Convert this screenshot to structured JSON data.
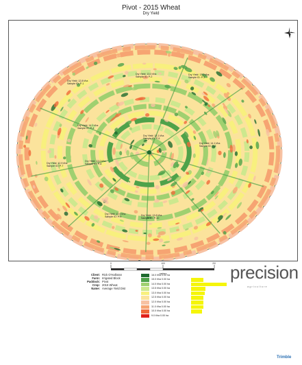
{
  "map": {
    "title": "Pivot - 2015 Wheat",
    "subtitle": "Dry Yield",
    "compass_icon": "north-arrow-icon",
    "colors": {
      "low_1": "#e0201a",
      "low_2": "#f06a3a",
      "low_3": "#f6a472",
      "low_4": "#f7c2a3",
      "mid_1": "#fbe39c",
      "mid_2": "#f8f07e",
      "high_1": "#cde88e",
      "high_2": "#9fd070",
      "high_3": "#4fa24a",
      "high_4": "#1f6a2f",
      "outline": "#555555"
    },
    "samples": [
      {
        "line1": "Dry Yield: 12.8 t/ha",
        "line2": "Sample ID: P-1"
      },
      {
        "line1": "Dry Yield: 13.0 t/ha",
        "line2": "Sample ID: P-2"
      },
      {
        "line1": "Dry Yield: 13.0 t/ha",
        "line2": "Sample ID: P-3"
      },
      {
        "line1": "Dry Yield: 14.1 t/ha",
        "line2": "Sample ID: P-4"
      },
      {
        "line1": "Dry Yield: 13.1 t/ha",
        "line2": "Sample ID: P-5"
      },
      {
        "line1": "Dry Yield: 14.1 t/ha",
        "line2": "Sample ID: P-6"
      },
      {
        "line1": "Dry Yield: 12.9 t/ha",
        "line2": "Sample ID: P-7"
      },
      {
        "line1": "Dry Yield: 13.0 t/ha",
        "line2": "Sample ID: P-8"
      },
      {
        "line1": "Dry Yield: 13.9 t/ha",
        "line2": "Sample ID: P-9"
      },
      {
        "line1": "Dry Yield: 13.8 t/ha",
        "line2": "Sample ID: P-10"
      }
    ],
    "scale": {
      "labels": [
        "0",
        "100",
        "200"
      ],
      "unit": "meters"
    }
  },
  "branding": {
    "logo": "precision",
    "logo_sub": "agriculture",
    "trimble": "Trimble"
  },
  "metadata": [
    {
      "key": "Client:",
      "value": "Rick O'Halloran"
    },
    {
      "key": "Farm:",
      "value": "Irrigated Block"
    },
    {
      "key": "Paddock:",
      "value": "Pivot"
    },
    {
      "key": "Crop:",
      "value": "2015 Wheat"
    },
    {
      "key": "Name:",
      "value": "Average Yield Dist"
    }
  ],
  "legend": [
    {
      "label": "16.0 t/ha   0.00 ha",
      "color": "#1f6a2f",
      "share": 0.0
    },
    {
      "label": "15.0 t/ha   0.00 ha",
      "color": "#4fa24a",
      "share": 0.35
    },
    {
      "label": "14.0 t/ha   0.00 ha",
      "color": "#9fd070",
      "share": 1.0
    },
    {
      "label": "13.5 t/ha   0.00 ha",
      "color": "#cde88e",
      "share": 0.4
    },
    {
      "label": "13.0 t/ha   0.00 ha",
      "color": "#f8f07e",
      "share": 0.38
    },
    {
      "label": "12.5 t/ha   0.00 ha",
      "color": "#fbe39c",
      "share": 0.35
    },
    {
      "label": "12.0 t/ha   0.00 ha",
      "color": "#f7c2a3",
      "share": 0.35
    },
    {
      "label": "11.0 t/ha   0.00 ha",
      "color": "#f6a472",
      "share": 0.35
    },
    {
      "label": "10.0 t/ha   0.00 ha",
      "color": "#f06a3a",
      "share": 0.3
    },
    {
      "label": "9.0 t/ha   0.00 ha",
      "color": "#e0201a",
      "share": 0.0
    }
  ]
}
